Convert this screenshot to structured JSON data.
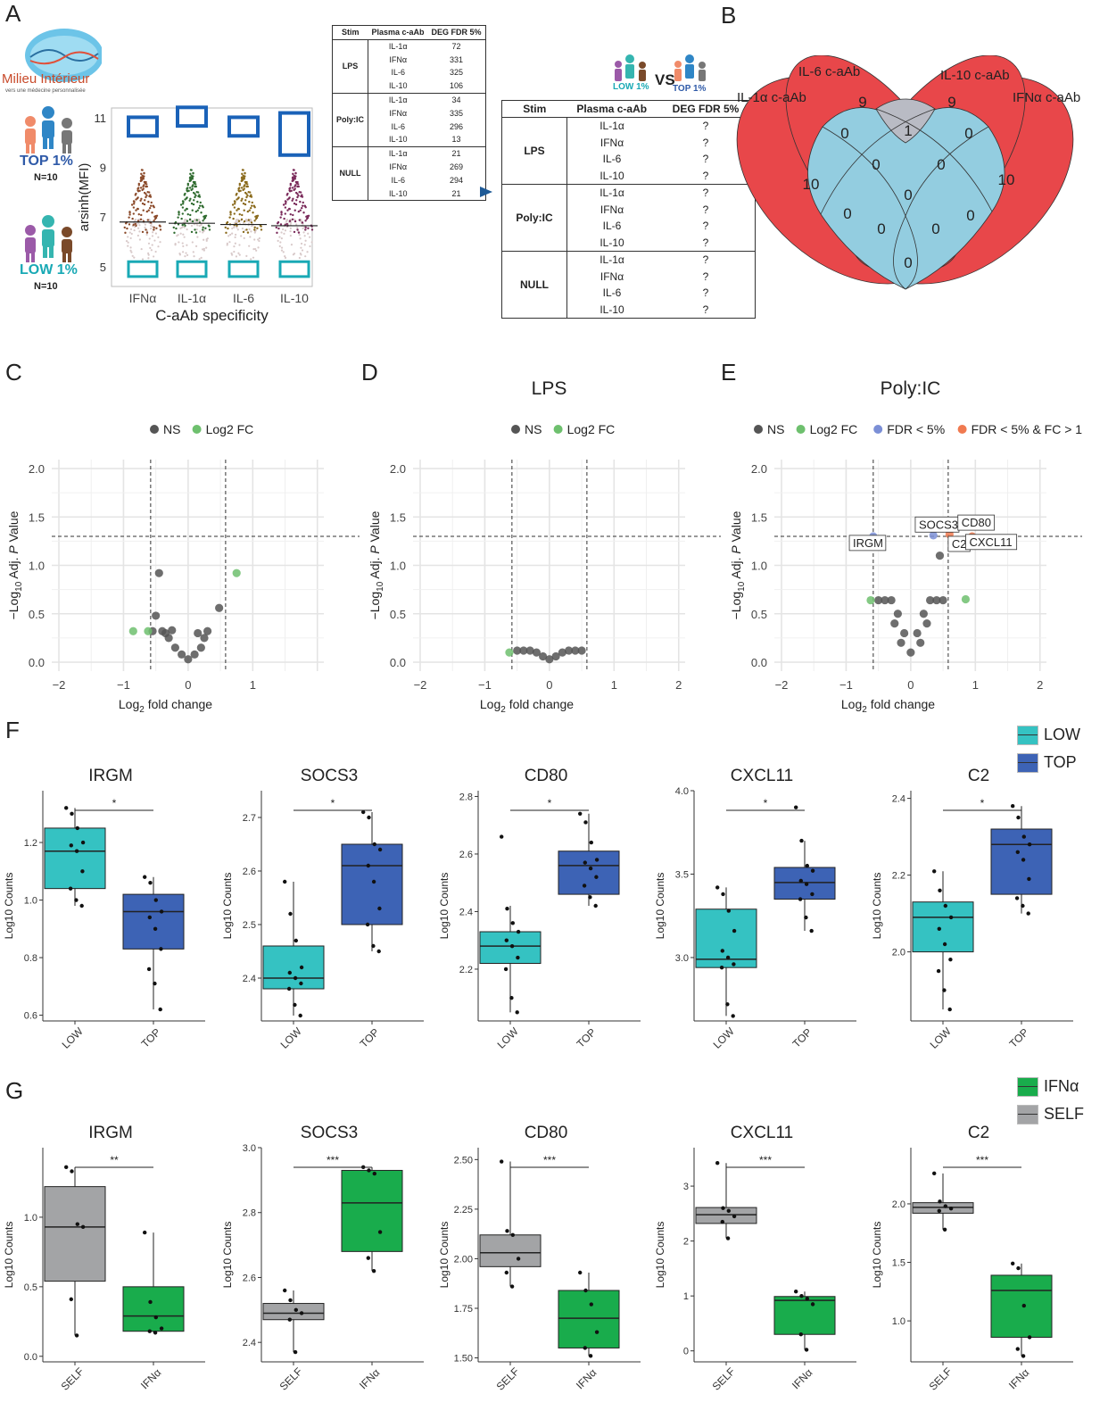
{
  "panels": {
    "A": "A",
    "B": "B",
    "C": "C",
    "D": "D",
    "E": "E",
    "F": "F",
    "G": "G"
  },
  "logo": {
    "line1": "Milieu Intérieur",
    "line2": "vers une médecine personnalisée"
  },
  "groups": {
    "top": {
      "label": "TOP 1%",
      "n": "N=10",
      "color": "#2f5aa8"
    },
    "low": {
      "label": "LOW 1%",
      "n": "N=10",
      "color": "#19a9b5"
    }
  },
  "beeswarm": {
    "ylabel": "arsinh(MFI)",
    "xlabel": "C-aAb specificity",
    "yticks": [
      "5",
      "7",
      "9",
      "11"
    ],
    "categories": [
      "IFNα",
      "IL-1α",
      "IL-6",
      "IL-10"
    ],
    "colors": [
      "#8b4a2a",
      "#2f6b2f",
      "#8a6a1c",
      "#7a2a5a"
    ]
  },
  "small_table": {
    "headers": [
      "Stim",
      "Plasma c-aAb",
      "DEG FDR 5%"
    ],
    "rows": [
      {
        "stim": "LPS",
        "items": [
          [
            "IL-1α",
            "72"
          ],
          [
            "IFNα",
            "331"
          ],
          [
            "IL-6",
            "325"
          ],
          [
            "IL-10",
            "106"
          ]
        ]
      },
      {
        "stim": "Poly:IC",
        "items": [
          [
            "IL-1α",
            "34"
          ],
          [
            "IFNα",
            "335"
          ],
          [
            "IL-6",
            "296"
          ],
          [
            "IL-10",
            "13"
          ]
        ]
      },
      {
        "stim": "NULL",
        "items": [
          [
            "IL-1α",
            "21"
          ],
          [
            "IFNα",
            "269"
          ],
          [
            "IL-6",
            "294"
          ],
          [
            "IL-10",
            "21"
          ]
        ]
      }
    ]
  },
  "compare": {
    "low": "LOW 1%",
    "vs": "VS",
    "top": "TOP 1%"
  },
  "big_table": {
    "headers": [
      "Stim",
      "Plasma c-aAb",
      "DEG FDR 5%"
    ],
    "rows": [
      {
        "stim": "LPS",
        "items": [
          [
            "IL-1α",
            "?"
          ],
          [
            "IFNα",
            "?"
          ],
          [
            "IL-6",
            "?"
          ],
          [
            "IL-10",
            "?"
          ]
        ]
      },
      {
        "stim": "Poly:IC",
        "items": [
          [
            "IL-1α",
            "?"
          ],
          [
            "IFNα",
            "?"
          ],
          [
            "IL-6",
            "?"
          ],
          [
            "IL-10",
            "?"
          ]
        ]
      },
      {
        "stim": "NULL",
        "items": [
          [
            "IL-1α",
            "?"
          ],
          [
            "IFNα",
            "?"
          ],
          [
            "IL-6",
            "?"
          ],
          [
            "IL-10",
            "?"
          ]
        ]
      }
    ]
  },
  "venn": {
    "labels": {
      "il1a": "IL-1α c-aAb",
      "il6": "IL-6 c-aAb",
      "il10": "IL-10 c-aAb",
      "ifna": "IFNα c-aAb"
    },
    "counts": {
      "il1a_only": "10",
      "il6_only": "9",
      "il10_only": "9",
      "ifna_only": "10",
      "il6_il10": "1",
      "il1a_il6": "0",
      "il10_ifna": "0",
      "c1": "0",
      "c2": "0",
      "center": "0",
      "il1a_ifna": "0",
      "il1a_il10": "0",
      "il6_ifna": "0",
      "b1": "0",
      "b2": "0",
      "bottom": "0"
    },
    "colors": {
      "red": "#e8474a",
      "blue": "#93cde0",
      "grey": "#b9bbc4"
    }
  },
  "chart_data": [
    {
      "type": "scatter",
      "panel": "C",
      "title": "",
      "legend": [
        "NS",
        "Log2 FC"
      ],
      "xlabel": "Log2 fold change",
      "ylabel": "−Log10 Adj. P Value",
      "xlim": [
        -2.0,
        2.0
      ],
      "ylim": [
        0.0,
        2.0
      ],
      "xticks": [
        "−2",
        "−1",
        "0",
        "1"
      ],
      "yticks": [
        "0.0",
        "0.5",
        "1.0",
        "1.5",
        "2.0"
      ],
      "thresholds": {
        "fc": 0.58,
        "p": 1.3
      },
      "points": {
        "NS": [
          [
            -0.45,
            0.92
          ],
          [
            0.48,
            0.56
          ],
          [
            -0.5,
            0.48
          ],
          [
            -0.55,
            0.32
          ],
          [
            -0.4,
            0.32
          ],
          [
            -0.3,
            0.25
          ],
          [
            -0.2,
            0.15
          ],
          [
            -0.1,
            0.08
          ],
          [
            0.0,
            0.03
          ],
          [
            0.1,
            0.08
          ],
          [
            0.2,
            0.15
          ],
          [
            0.25,
            0.25
          ],
          [
            -0.35,
            0.3
          ],
          [
            -0.25,
            0.33
          ],
          [
            0.15,
            0.3
          ],
          [
            0.3,
            0.32
          ]
        ],
        "Log2 FC": [
          [
            -0.85,
            0.32
          ],
          [
            -0.62,
            0.32
          ],
          [
            0.75,
            0.92
          ]
        ]
      }
    },
    {
      "type": "scatter",
      "panel": "D",
      "title": "LPS",
      "legend": [
        "NS",
        "Log2 FC"
      ],
      "xlabel": "Log2 fold change",
      "ylabel": "−Log10 Adj. P Value",
      "xlim": [
        -2.0,
        2.0
      ],
      "ylim": [
        0.0,
        2.0
      ],
      "xticks": [
        "−2",
        "−1",
        "0",
        "1",
        "2"
      ],
      "yticks": [
        "0.0",
        "0.5",
        "1.0",
        "1.5",
        "2.0"
      ],
      "thresholds": {
        "fc": 0.58,
        "p": 1.3
      },
      "points": {
        "NS": [
          [
            -0.5,
            0.12
          ],
          [
            -0.4,
            0.12
          ],
          [
            -0.3,
            0.12
          ],
          [
            -0.2,
            0.1
          ],
          [
            -0.1,
            0.06
          ],
          [
            0.0,
            0.03
          ],
          [
            0.1,
            0.06
          ],
          [
            0.2,
            0.1
          ],
          [
            0.3,
            0.12
          ],
          [
            0.4,
            0.12
          ],
          [
            0.5,
            0.12
          ]
        ],
        "Log2 FC": [
          [
            -0.62,
            0.1
          ]
        ]
      }
    },
    {
      "type": "scatter",
      "panel": "E",
      "title": "Poly:IC",
      "legend": [
        "NS",
        "Log2 FC",
        "FDR < 5%",
        "FDR < 5% & FC > 1"
      ],
      "xlabel": "Log2 fold change",
      "ylabel": "−Log10 Adj. P Value",
      "xlim": [
        -2.0,
        2.0
      ],
      "ylim": [
        0.0,
        2.0
      ],
      "xticks": [
        "−2",
        "−1",
        "0",
        "1",
        "2"
      ],
      "yticks": [
        "0.0",
        "0.5",
        "1.0",
        "1.5",
        "2.0"
      ],
      "thresholds": {
        "fc": 0.58,
        "p": 1.3
      },
      "labels": [
        {
          "text": "IRGM",
          "x": -0.6,
          "y": 1.3
        },
        {
          "text": "SOCS3",
          "x": 0.35,
          "y": 1.32
        },
        {
          "text": "CD80",
          "x": 0.6,
          "y": 1.32
        },
        {
          "text": "C2",
          "x": 0.5,
          "y": 1.3
        },
        {
          "text": "CXCL11",
          "x": 0.95,
          "y": 1.3
        }
      ],
      "points": {
        "NS": [
          [
            0.45,
            1.1
          ],
          [
            -0.5,
            0.64
          ],
          [
            -0.4,
            0.64
          ],
          [
            -0.3,
            0.64
          ],
          [
            -0.2,
            0.5
          ],
          [
            -0.1,
            0.3
          ],
          [
            0.0,
            0.1
          ],
          [
            0.1,
            0.3
          ],
          [
            0.2,
            0.5
          ],
          [
            0.3,
            0.64
          ],
          [
            0.4,
            0.64
          ],
          [
            0.5,
            0.64
          ],
          [
            -0.25,
            0.4
          ],
          [
            0.25,
            0.4
          ],
          [
            -0.15,
            0.2
          ],
          [
            0.15,
            0.2
          ]
        ],
        "Log2 FC": [
          [
            -0.62,
            0.64
          ],
          [
            0.85,
            0.65
          ]
        ],
        "FDR < 5%": [
          [
            -0.58,
            1.3
          ],
          [
            0.35,
            1.31
          ]
        ],
        "FDR < 5% & FC > 1": [
          [
            0.6,
            1.32
          ],
          [
            0.95,
            1.3
          ]
        ]
      }
    },
    {
      "type": "box",
      "panel": "F",
      "gene": "IRGM",
      "ylabel": "Log10 Counts",
      "categories": [
        "LOW",
        "TOP"
      ],
      "signif": "*",
      "ylim": [
        0.58,
        1.38
      ],
      "yticks": [
        0.6,
        0.8,
        1.0,
        1.2
      ],
      "tick_fmt": 1,
      "boxes": [
        {
          "q1": 1.04,
          "median": 1.17,
          "q3": 1.25,
          "min": 0.98,
          "max": 1.32
        },
        {
          "q1": 0.83,
          "median": 0.96,
          "q3": 1.02,
          "min": 0.62,
          "max": 1.08
        }
      ],
      "points": [
        [
          1.32,
          1.3,
          1.25,
          1.2,
          1.19,
          1.17,
          1.1,
          1.04,
          1.0,
          0.98
        ],
        [
          1.08,
          1.06,
          1.0,
          0.96,
          0.94,
          0.9,
          0.83,
          0.76,
          0.71,
          0.62
        ]
      ]
    },
    {
      "type": "box",
      "panel": "F",
      "gene": "SOCS3",
      "ylabel": "Log10 Counts",
      "categories": [
        "LOW",
        "TOP"
      ],
      "signif": "*",
      "ylim": [
        2.32,
        2.75
      ],
      "yticks": [
        2.4,
        2.5,
        2.6,
        2.7
      ],
      "tick_fmt": 1,
      "boxes": [
        {
          "q1": 2.38,
          "median": 2.4,
          "q3": 2.46,
          "min": 2.33,
          "max": 2.58
        },
        {
          "q1": 2.5,
          "median": 2.61,
          "q3": 2.65,
          "min": 2.45,
          "max": 2.71
        }
      ],
      "points": [
        [
          2.58,
          2.52,
          2.47,
          2.42,
          2.41,
          2.4,
          2.39,
          2.38,
          2.35,
          2.33
        ],
        [
          2.71,
          2.7,
          2.65,
          2.64,
          2.61,
          2.58,
          2.53,
          2.5,
          2.46,
          2.45
        ]
      ]
    },
    {
      "type": "box",
      "panel": "F",
      "gene": "CD80",
      "ylabel": "Log10 Counts",
      "categories": [
        "LOW",
        "TOP"
      ],
      "signif": "*",
      "ylim": [
        2.02,
        2.82
      ],
      "yticks": [
        2.2,
        2.4,
        2.6,
        2.8
      ],
      "tick_fmt": 1,
      "boxes": [
        {
          "q1": 2.22,
          "median": 2.28,
          "q3": 2.33,
          "min": 2.05,
          "max": 2.42
        },
        {
          "q1": 2.46,
          "median": 2.56,
          "q3": 2.61,
          "min": 2.42,
          "max": 2.74
        }
      ],
      "points": [
        [
          2.66,
          2.41,
          2.36,
          2.33,
          2.3,
          2.28,
          2.24,
          2.2,
          2.1,
          2.05
        ],
        [
          2.74,
          2.71,
          2.64,
          2.58,
          2.57,
          2.55,
          2.52,
          2.49,
          2.45,
          2.42
        ]
      ]
    },
    {
      "type": "box",
      "panel": "F",
      "gene": "CXCL11",
      "ylabel": "Log10 Counts",
      "categories": [
        "LOW",
        "TOP"
      ],
      "signif": "*",
      "ylim": [
        2.62,
        4.0
      ],
      "yticks": [
        3.0,
        3.5,
        4.0
      ],
      "tick_fmt": 1,
      "boxes": [
        {
          "q1": 2.94,
          "median": 2.99,
          "q3": 3.29,
          "min": 2.65,
          "max": 3.42
        },
        {
          "q1": 3.35,
          "median": 3.45,
          "q3": 3.54,
          "min": 3.16,
          "max": 3.7
        }
      ],
      "points": [
        [
          3.42,
          3.38,
          3.28,
          3.16,
          3.04,
          3.0,
          2.96,
          2.94,
          2.72,
          2.65
        ],
        [
          3.9,
          3.7,
          3.55,
          3.52,
          3.46,
          3.44,
          3.38,
          3.35,
          3.24,
          3.16
        ]
      ]
    },
    {
      "type": "box",
      "panel": "F",
      "gene": "C2",
      "ylabel": "Log10 Counts",
      "categories": [
        "LOW",
        "TOP"
      ],
      "signif": "*",
      "ylim": [
        1.82,
        2.42
      ],
      "yticks": [
        2.0,
        2.2,
        2.4
      ],
      "tick_fmt": 1,
      "boxes": [
        {
          "q1": 2.0,
          "median": 2.09,
          "q3": 2.13,
          "min": 1.85,
          "max": 2.21
        },
        {
          "q1": 2.15,
          "median": 2.28,
          "q3": 2.32,
          "min": 2.1,
          "max": 2.38
        }
      ],
      "points": [
        [
          2.21,
          2.16,
          2.12,
          2.09,
          2.06,
          2.02,
          1.98,
          1.95,
          1.9,
          1.85
        ],
        [
          2.38,
          2.35,
          2.3,
          2.28,
          2.26,
          2.24,
          2.19,
          2.14,
          2.12,
          2.1
        ]
      ]
    },
    {
      "type": "box",
      "panel": "G",
      "gene": "IRGM",
      "ylabel": "Log10 Counts",
      "categories": [
        "SELF",
        "IFNα"
      ],
      "signif": "**",
      "ylim": [
        -0.04,
        1.5
      ],
      "yticks": [
        0.0,
        0.5,
        1.0
      ],
      "tick_fmt": 1,
      "boxes": [
        {
          "q1": 0.54,
          "median": 0.93,
          "q3": 1.22,
          "min": 0.15,
          "max": 1.36
        },
        {
          "q1": 0.18,
          "median": 0.29,
          "q3": 0.5,
          "min": 0.17,
          "max": 0.89
        }
      ],
      "points": [
        [
          1.36,
          1.33,
          0.95,
          0.93,
          0.41,
          0.15
        ],
        [
          0.89,
          0.39,
          0.28,
          0.2,
          0.18,
          0.17
        ]
      ]
    },
    {
      "type": "box",
      "panel": "G",
      "gene": "SOCS3",
      "ylabel": "Log10 Counts",
      "categories": [
        "SELF",
        "IFNα"
      ],
      "signif": "***",
      "ylim": [
        2.34,
        3.0
      ],
      "yticks": [
        2.4,
        2.6,
        2.8,
        3.0
      ],
      "tick_fmt": 1,
      "boxes": [
        {
          "q1": 2.47,
          "median": 2.49,
          "q3": 2.52,
          "min": 2.37,
          "max": 2.56
        },
        {
          "q1": 2.68,
          "median": 2.83,
          "q3": 2.93,
          "min": 2.62,
          "max": 2.94
        }
      ],
      "points": [
        [
          2.56,
          2.53,
          2.5,
          2.49,
          2.47,
          2.37
        ],
        [
          2.94,
          2.93,
          2.92,
          2.74,
          2.66,
          2.62
        ]
      ]
    },
    {
      "type": "box",
      "panel": "G",
      "gene": "CD80",
      "ylabel": "Log10 Counts",
      "categories": [
        "SELF",
        "IFNα"
      ],
      "signif": "***",
      "ylim": [
        1.48,
        2.56
      ],
      "yticks": [
        1.5,
        1.75,
        2.0,
        2.25,
        2.5
      ],
      "tick_fmt": 2,
      "boxes": [
        {
          "q1": 1.96,
          "median": 2.03,
          "q3": 2.12,
          "min": 1.86,
          "max": 2.49
        },
        {
          "q1": 1.55,
          "median": 1.7,
          "q3": 1.84,
          "min": 1.51,
          "max": 1.93
        }
      ],
      "points": [
        [
          2.49,
          2.14,
          2.12,
          2.0,
          1.93,
          1.86
        ],
        [
          1.93,
          1.84,
          1.77,
          1.63,
          1.55,
          1.51
        ]
      ]
    },
    {
      "type": "box",
      "panel": "G",
      "gene": "CXCL11",
      "ylabel": "Log10 Counts",
      "categories": [
        "SELF",
        "IFNα"
      ],
      "signif": "***",
      "ylim": [
        -0.2,
        3.7
      ],
      "yticks": [
        0,
        1,
        2,
        3
      ],
      "tick_fmt": 0,
      "boxes": [
        {
          "q1": 2.32,
          "median": 2.48,
          "q3": 2.61,
          "min": 2.05,
          "max": 3.42
        },
        {
          "q1": 0.3,
          "median": 0.92,
          "q3": 0.99,
          "min": 0.02,
          "max": 1.08
        }
      ],
      "points": [
        [
          3.42,
          2.6,
          2.55,
          2.45,
          2.35,
          2.05
        ],
        [
          1.08,
          1.0,
          0.95,
          0.85,
          0.3,
          0.02
        ]
      ]
    },
    {
      "type": "box",
      "panel": "G",
      "gene": "C2",
      "ylabel": "Log10 Counts",
      "categories": [
        "SELF",
        "IFNα"
      ],
      "signif": "***",
      "ylim": [
        0.65,
        2.48
      ],
      "yticks": [
        1.0,
        1.5,
        2.0
      ],
      "tick_fmt": 1,
      "boxes": [
        {
          "q1": 1.92,
          "median": 1.97,
          "q3": 2.01,
          "min": 1.78,
          "max": 2.26
        },
        {
          "q1": 0.86,
          "median": 1.26,
          "q3": 1.39,
          "min": 0.7,
          "max": 1.49
        }
      ],
      "points": [
        [
          2.26,
          2.02,
          1.98,
          1.96,
          1.94,
          1.78
        ],
        [
          1.49,
          1.45,
          1.13,
          0.86,
          0.76,
          0.7
        ]
      ]
    }
  ],
  "legends": {
    "F": [
      {
        "label": "LOW",
        "color": "#35c2c2"
      },
      {
        "label": "TOP",
        "color": "#3d63b5"
      }
    ],
    "G": [
      {
        "label": "IFNα",
        "color": "#19ac4c"
      },
      {
        "label": "SELF",
        "color": "#a3a4a6"
      }
    ]
  },
  "colors": {
    "ns": "#555555",
    "fc": "#6ec06e",
    "fdr": "#7b8fd6",
    "both": "#f07a50"
  }
}
